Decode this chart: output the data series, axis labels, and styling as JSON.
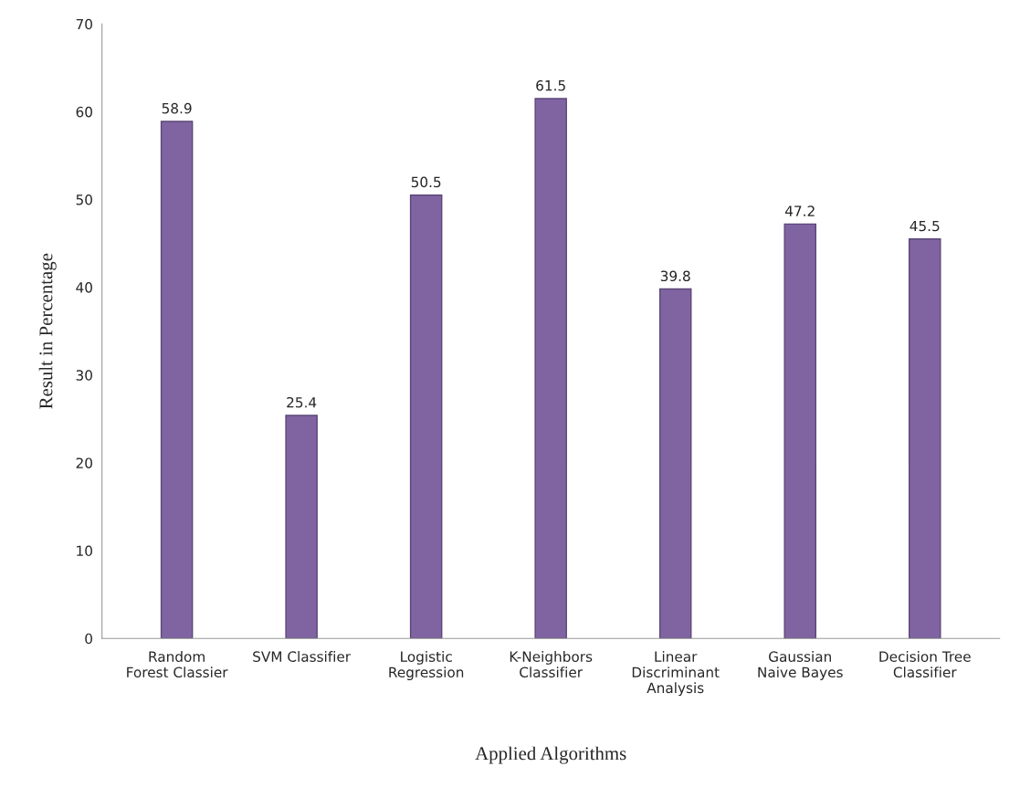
{
  "chart_data": {
    "type": "bar",
    "xlabel": "Applied Algorithms",
    "ylabel": "Result in Percentage",
    "categories": [
      "Random\nForest Classier",
      "SVM Classifier",
      "Logistic\nRegression",
      "K-Neighbors\nClassifier",
      "Linear\nDiscriminant\nAnalysis",
      "Gaussian\nNaive Bayes",
      "Decision Tree\nClassifier"
    ],
    "values": [
      58.9,
      25.4,
      50.5,
      61.5,
      39.8,
      47.2,
      45.5
    ],
    "color": "#8064a2",
    "ylim": [
      0,
      70
    ],
    "yticks": [
      0,
      10,
      20,
      30,
      40,
      50,
      60,
      70
    ],
    "grid": false,
    "data_labels": true
  }
}
